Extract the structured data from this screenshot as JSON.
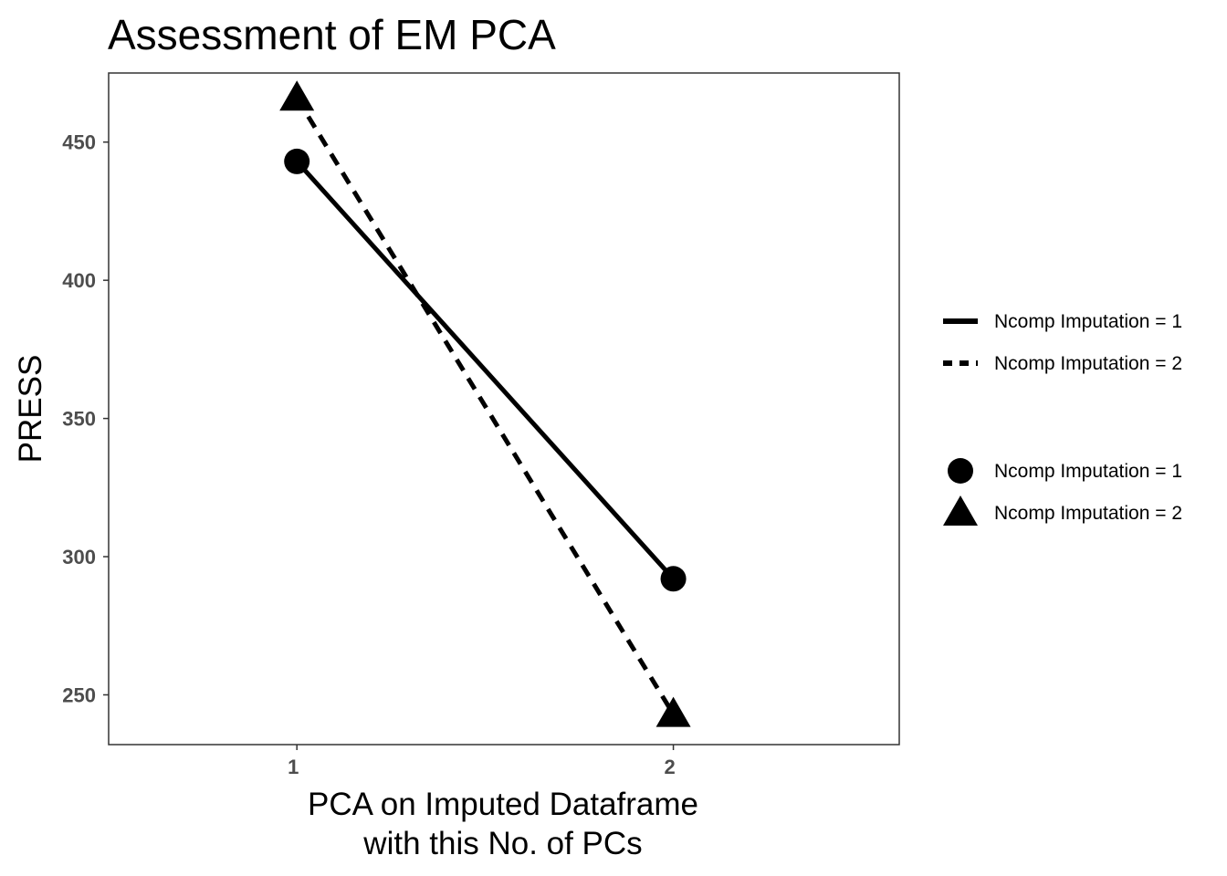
{
  "chart_data": {
    "type": "line",
    "title": "Assessment of EM PCA",
    "xlabel_lines": [
      "PCA on Imputed Dataframe",
      "with this No. of PCs"
    ],
    "ylabel": "PRESS",
    "x": [
      1,
      2
    ],
    "x_ticks": [
      "1",
      "2"
    ],
    "xlim": [
      0.5,
      2.6
    ],
    "y_ticks": [
      250,
      300,
      350,
      400,
      450
    ],
    "ylim": [
      232,
      475
    ],
    "grid": false,
    "legend_position": "right",
    "series": [
      {
        "name": "Ncomp Imputation =  1",
        "values": [
          443,
          292
        ],
        "line_style": "solid",
        "marker": "circle",
        "color": "#000000"
      },
      {
        "name": "Ncomp Imputation =  2",
        "values": [
          466,
          243
        ],
        "line_style": "dashed",
        "marker": "triangle",
        "color": "#000000"
      }
    ]
  }
}
